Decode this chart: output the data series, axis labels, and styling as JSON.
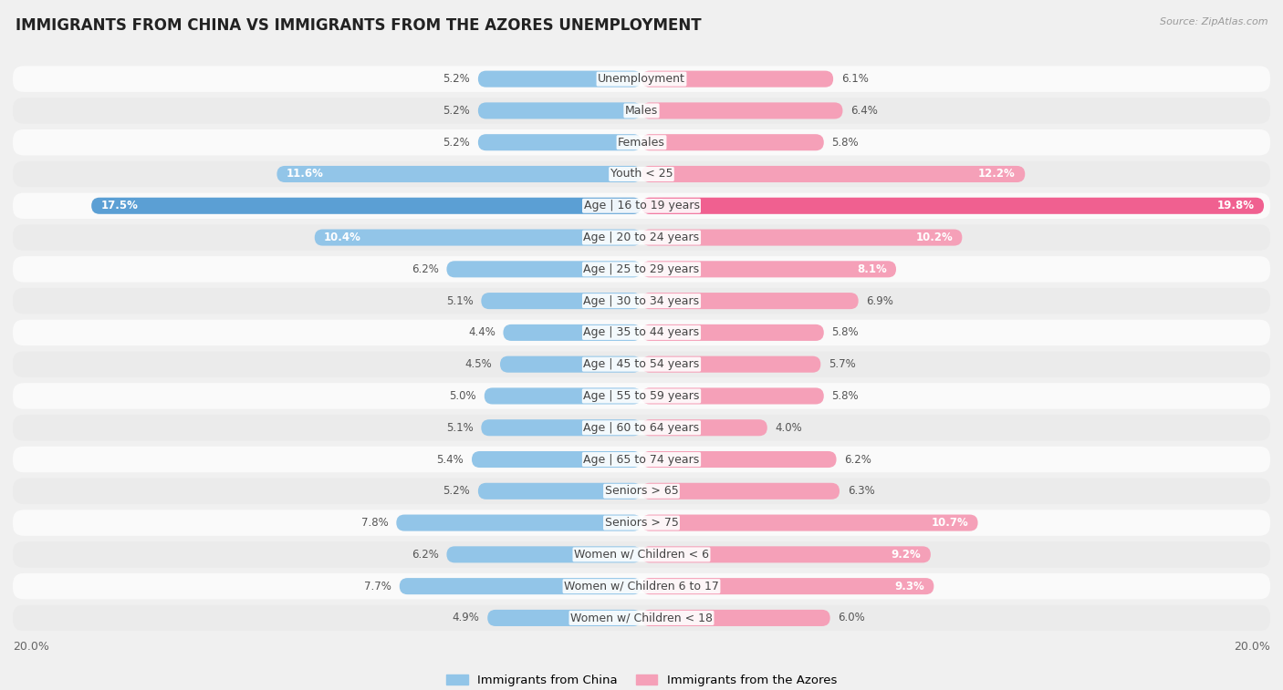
{
  "title": "IMMIGRANTS FROM CHINA VS IMMIGRANTS FROM THE AZORES UNEMPLOYMENT",
  "source": "Source: ZipAtlas.com",
  "categories": [
    "Unemployment",
    "Males",
    "Females",
    "Youth < 25",
    "Age | 16 to 19 years",
    "Age | 20 to 24 years",
    "Age | 25 to 29 years",
    "Age | 30 to 34 years",
    "Age | 35 to 44 years",
    "Age | 45 to 54 years",
    "Age | 55 to 59 years",
    "Age | 60 to 64 years",
    "Age | 65 to 74 years",
    "Seniors > 65",
    "Seniors > 75",
    "Women w/ Children < 6",
    "Women w/ Children 6 to 17",
    "Women w/ Children < 18"
  ],
  "china_values": [
    5.2,
    5.2,
    5.2,
    11.6,
    17.5,
    10.4,
    6.2,
    5.1,
    4.4,
    4.5,
    5.0,
    5.1,
    5.4,
    5.2,
    7.8,
    6.2,
    7.7,
    4.9
  ],
  "azores_values": [
    6.1,
    6.4,
    5.8,
    12.2,
    19.8,
    10.2,
    8.1,
    6.9,
    5.8,
    5.7,
    5.8,
    4.0,
    6.2,
    6.3,
    10.7,
    9.2,
    9.3,
    6.0
  ],
  "china_color": "#92c5e8",
  "azores_color": "#f5a0b8",
  "china_color_strong": "#5b9fd4",
  "azores_color_strong": "#f06090",
  "background_color": "#f0f0f0",
  "row_color_light": "#fafafa",
  "row_color_dark": "#ebebeb",
  "max_val": 20.0,
  "legend_china": "Immigrants from China",
  "legend_azores": "Immigrants from the Azores",
  "title_fontsize": 12,
  "label_fontsize": 9,
  "value_fontsize": 8.5,
  "bar_height": 0.52
}
